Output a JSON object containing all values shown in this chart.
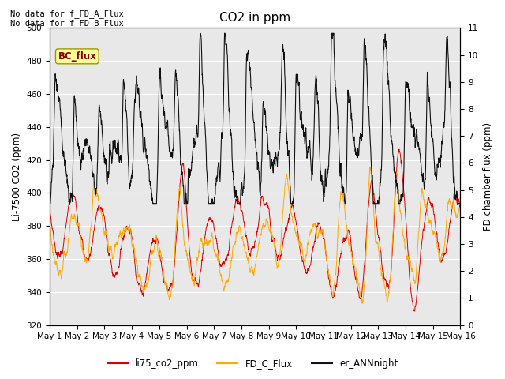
{
  "title": "CO2 in ppm",
  "ylabel_left": "Li-7500 CO2 (ppm)",
  "ylabel_right": "FD chamber flux (ppm)",
  "ylim_left": [
    320,
    500
  ],
  "ylim_right": [
    0.0,
    11.0
  ],
  "yticks_left": [
    320,
    340,
    360,
    380,
    400,
    420,
    440,
    460,
    480,
    500
  ],
  "yticks_right": [
    0.0,
    1.0,
    2.0,
    3.0,
    4.0,
    5.0,
    6.0,
    7.0,
    8.0,
    9.0,
    10.0,
    11.0
  ],
  "xtick_labels": [
    "May 1",
    "May 2",
    "May 3",
    "May 4",
    "May 5",
    "May 6",
    "May 7",
    "May 8",
    "May 9",
    "May 10",
    "May 11",
    "May 12",
    "May 13",
    "May 14",
    "May 15",
    "May 16"
  ],
  "color_red": "#dd0000",
  "color_orange": "#ffaa00",
  "color_black": "#111111",
  "color_bg": "#e8e8e8",
  "text_no_data1": "No data for f_FD_A_Flux",
  "text_no_data2": "No data for f_FD_B_Flux",
  "bc_flux_label": "BC_flux",
  "legend_labels": [
    "li75_co2_ppm",
    "FD_C_Flux",
    "er_ANNnight"
  ],
  "n_points": 2000,
  "seed": 7
}
